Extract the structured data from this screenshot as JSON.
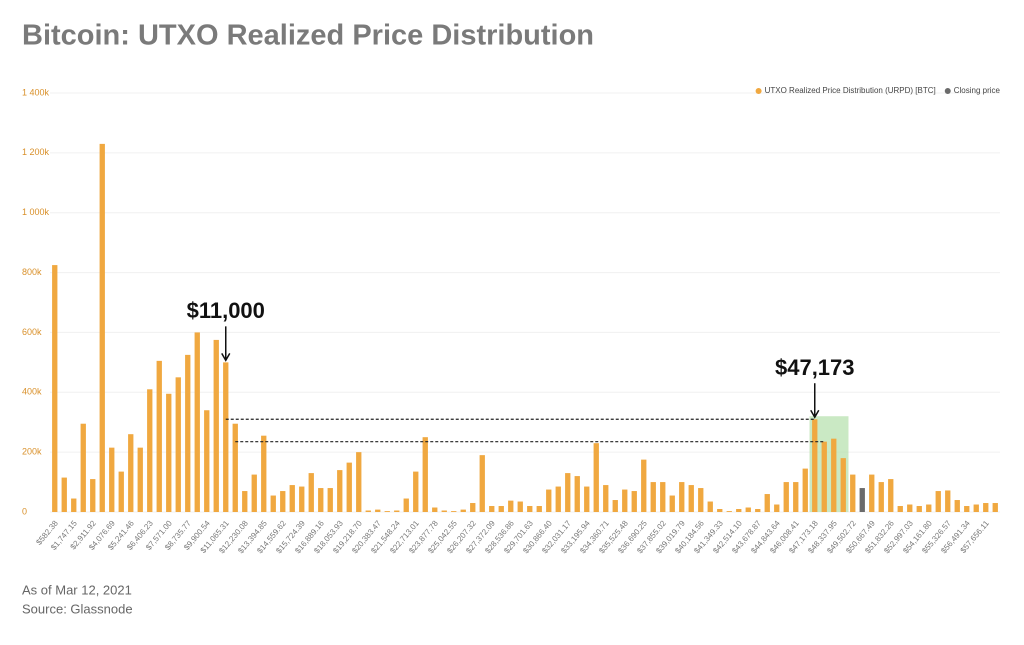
{
  "chart_data": {
    "type": "bar",
    "title": "Bitcoin: UTXO Realized Price Distribution",
    "footnotes": [
      "As of Mar 12, 2021",
      "Source: Glassnode"
    ],
    "annotations": [
      "$11,000",
      "$47,173"
    ],
    "legend": "top-right",
    "categories": [
      "$582.38",
      null,
      "$1,747.15",
      null,
      "$2,911.92",
      null,
      "$4,076.69",
      null,
      "$5,241.46",
      null,
      "$6,406.23",
      null,
      "$7,571.00",
      null,
      "$8,735.77",
      null,
      "$9,900.54",
      null,
      "$11,065.31",
      null,
      "$12,230.08",
      null,
      "$13,394.85",
      null,
      "$14,559.62",
      null,
      "$15,724.39",
      null,
      "$16,889.16",
      null,
      "$18,053.93",
      null,
      "$19,218.70",
      null,
      "$20,383.47",
      null,
      "$21,548.24",
      null,
      "$22,713.01",
      null,
      "$23,877.78",
      null,
      "$25,042.55",
      null,
      "$26,207.32",
      null,
      "$27,372.09",
      null,
      "$28,536.86",
      null,
      "$29,701.63",
      null,
      "$30,866.40",
      null,
      "$32,031.17",
      null,
      "$33,195.94",
      null,
      "$34,360.71",
      null,
      "$35,525.48",
      null,
      "$36,690.25",
      null,
      "$37,855.02",
      null,
      "$39,019.79",
      null,
      "$40,184.56",
      null,
      "$41,349.33",
      null,
      "$42,514.10",
      null,
      "$43,678.87",
      null,
      "$44,843.64",
      null,
      "$46,008.41",
      null,
      "$47,173.18",
      null,
      "$48,337.95",
      null,
      "$49,502.72",
      null,
      "$50,667.49",
      null,
      "$51,832.26",
      null,
      "$52,997.03",
      null,
      "$54,161.80",
      null,
      "$55,326.57",
      null,
      "$56,491.34",
      null,
      "$57,656.11",
      null
    ],
    "series": [
      {
        "name": "UTXO Realized Price Distribution (URPD) [BTC]",
        "color": "#f0a840",
        "values": [
          825000,
          115000,
          45000,
          295000,
          110000,
          1230000,
          215000,
          135000,
          260000,
          215000,
          410000,
          505000,
          395000,
          450000,
          525000,
          600000,
          340000,
          575000,
          500000,
          295000,
          70000,
          125000,
          255000,
          55000,
          70000,
          90000,
          85000,
          130000,
          80000,
          80000,
          140000,
          165000,
          200000,
          5000,
          8000,
          3000,
          5000,
          45000,
          135000,
          250000,
          15000,
          5000,
          3000,
          8000,
          30000,
          190000,
          20000,
          20000,
          38000,
          35000,
          20000,
          20000,
          75000,
          85000,
          130000,
          120000,
          85000,
          230000,
          90000,
          40000,
          75000,
          70000,
          175000,
          100000,
          100000,
          55000,
          100000,
          90000,
          80000,
          35000,
          10000,
          3000,
          10000,
          15000,
          10000,
          60000,
          25000,
          100000,
          100000,
          145000,
          310000,
          235000,
          245000,
          180000,
          125000,
          null,
          125000,
          100000,
          110000,
          20000,
          25000,
          20000,
          25000,
          70000,
          72000,
          40000,
          20000,
          25000,
          30000,
          30000
        ]
      },
      {
        "name": "Closing price",
        "color": "#6b6b6b",
        "values": [
          null,
          null,
          null,
          null,
          null,
          null,
          null,
          null,
          null,
          null,
          null,
          null,
          null,
          null,
          null,
          null,
          null,
          null,
          null,
          null,
          null,
          null,
          null,
          null,
          null,
          null,
          null,
          null,
          null,
          null,
          null,
          null,
          null,
          null,
          null,
          null,
          null,
          null,
          null,
          null,
          null,
          null,
          null,
          null,
          null,
          null,
          null,
          null,
          null,
          null,
          null,
          null,
          null,
          null,
          null,
          null,
          null,
          null,
          null,
          null,
          null,
          null,
          null,
          null,
          null,
          null,
          null,
          null,
          null,
          null,
          null,
          null,
          null,
          null,
          null,
          null,
          null,
          null,
          null,
          null,
          null,
          null,
          null,
          null,
          null,
          80000,
          null,
          null,
          null,
          null,
          null,
          null,
          null,
          null,
          null,
          null,
          null,
          null,
          null,
          null
        ]
      }
    ],
    "ylim": [
      0,
      1400000
    ],
    "yticks": [
      {
        "value": 0,
        "label": "0"
      },
      {
        "value": 200000,
        "label": "200k"
      },
      {
        "value": 400000,
        "label": "400k"
      },
      {
        "value": 600000,
        "label": "600k"
      },
      {
        "value": 800000,
        "label": "800k"
      },
      {
        "value": 1000000,
        "label": "1 000k"
      },
      {
        "value": 1200000,
        "label": "1 200k"
      },
      {
        "value": 1400000,
        "label": "1 400k"
      }
    ],
    "grid": true
  }
}
